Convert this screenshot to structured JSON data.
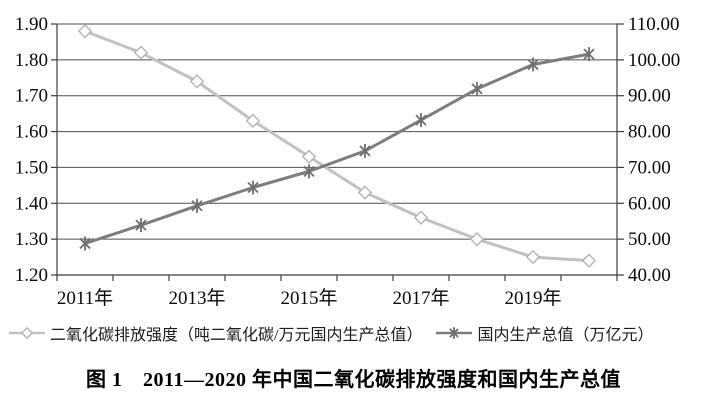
{
  "figure": {
    "caption": "图 1　2011—2020 年中国二氧化碳排放强度和国内生产总值"
  },
  "chart_data": {
    "type": "line",
    "title": "",
    "xlabel": "",
    "ylabel_left": "",
    "ylabel_right": "",
    "grid": true,
    "legend_position": "bottom",
    "x_years": [
      "2011年",
      "2012年",
      "2013年",
      "2014年",
      "2015年",
      "2016年",
      "2017年",
      "2018年",
      "2019年",
      "2020年"
    ],
    "x_tick_labels": [
      {
        "index": 0,
        "label": "2011年"
      },
      {
        "index": 2,
        "label": "2013年"
      },
      {
        "index": 4,
        "label": "2015年"
      },
      {
        "index": 6,
        "label": "2017年"
      },
      {
        "index": 8,
        "label": "2019年"
      }
    ],
    "left_axis": {
      "min": 1.2,
      "max": 1.9,
      "step": 0.1,
      "ticks": [
        "1.20",
        "1.30",
        "1.40",
        "1.50",
        "1.60",
        "1.70",
        "1.80",
        "1.90"
      ]
    },
    "right_axis": {
      "min": 40,
      "max": 110,
      "step": 10,
      "ticks": [
        "40.00",
        "50.00",
        "60.00",
        "70.00",
        "80.00",
        "90.00",
        "100.00",
        "110.00"
      ]
    },
    "series": [
      {
        "name": "二氧化碳排放强度（吨二氧化碳/万元国内生产总值）",
        "axis": "left",
        "marker": "diamond",
        "line_color": "#c1c1c1",
        "marker_color": "#b3b3b3",
        "values": [
          1.88,
          1.82,
          1.74,
          1.63,
          1.53,
          1.43,
          1.36,
          1.3,
          1.25,
          1.24
        ]
      },
      {
        "name": "国内生产总值（万亿元）",
        "axis": "right",
        "marker": "asterisk",
        "line_color": "#7d7d7d",
        "marker_color": "#6e6e6e",
        "values": [
          48.8,
          53.9,
          59.3,
          64.4,
          68.9,
          74.6,
          83.2,
          91.9,
          98.7,
          101.6
        ]
      }
    ]
  }
}
